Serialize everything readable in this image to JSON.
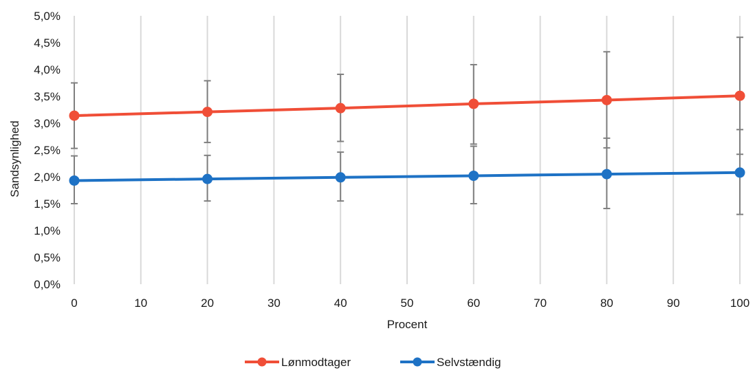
{
  "chart_data": {
    "type": "line",
    "xlabel": "Procent",
    "ylabel": "Sandsynlighed",
    "xlim": [
      0,
      100
    ],
    "ylim": [
      0,
      0.05
    ],
    "x_ticks": [
      "0",
      "10",
      "20",
      "30",
      "40",
      "50",
      "60",
      "70",
      "80",
      "90",
      "100"
    ],
    "y_ticks": [
      "0,0%",
      "0,5%",
      "1,0%",
      "1,5%",
      "2,0%",
      "2,5%",
      "3,0%",
      "3,5%",
      "4,0%",
      "4,5%",
      "5,0%"
    ],
    "grid": "vertical",
    "legend_position": "bottom",
    "x": [
      0,
      20,
      40,
      60,
      80,
      100
    ],
    "series": [
      {
        "name": "Lønmodtager",
        "color": "#f04e37",
        "values": [
          0.0314,
          0.0321,
          0.0328,
          0.0336,
          0.0343,
          0.0351
        ],
        "error_low": [
          0.0253,
          0.0264,
          0.0266,
          0.0261,
          0.0254,
          0.0242
        ],
        "error_high": [
          0.0375,
          0.0379,
          0.0391,
          0.0409,
          0.0433,
          0.046
        ]
      },
      {
        "name": "Selvstændig",
        "color": "#1e72c5",
        "values": [
          0.0193,
          0.0196,
          0.0199,
          0.0202,
          0.0205,
          0.0208
        ],
        "error_low": [
          0.015,
          0.0155,
          0.0155,
          0.015,
          0.0141,
          0.013
        ],
        "error_high": [
          0.0239,
          0.024,
          0.0246,
          0.0257,
          0.0272,
          0.0288
        ]
      }
    ],
    "error_bar_color": "#7f7f7f",
    "grid_color": "#d9d9d9"
  }
}
